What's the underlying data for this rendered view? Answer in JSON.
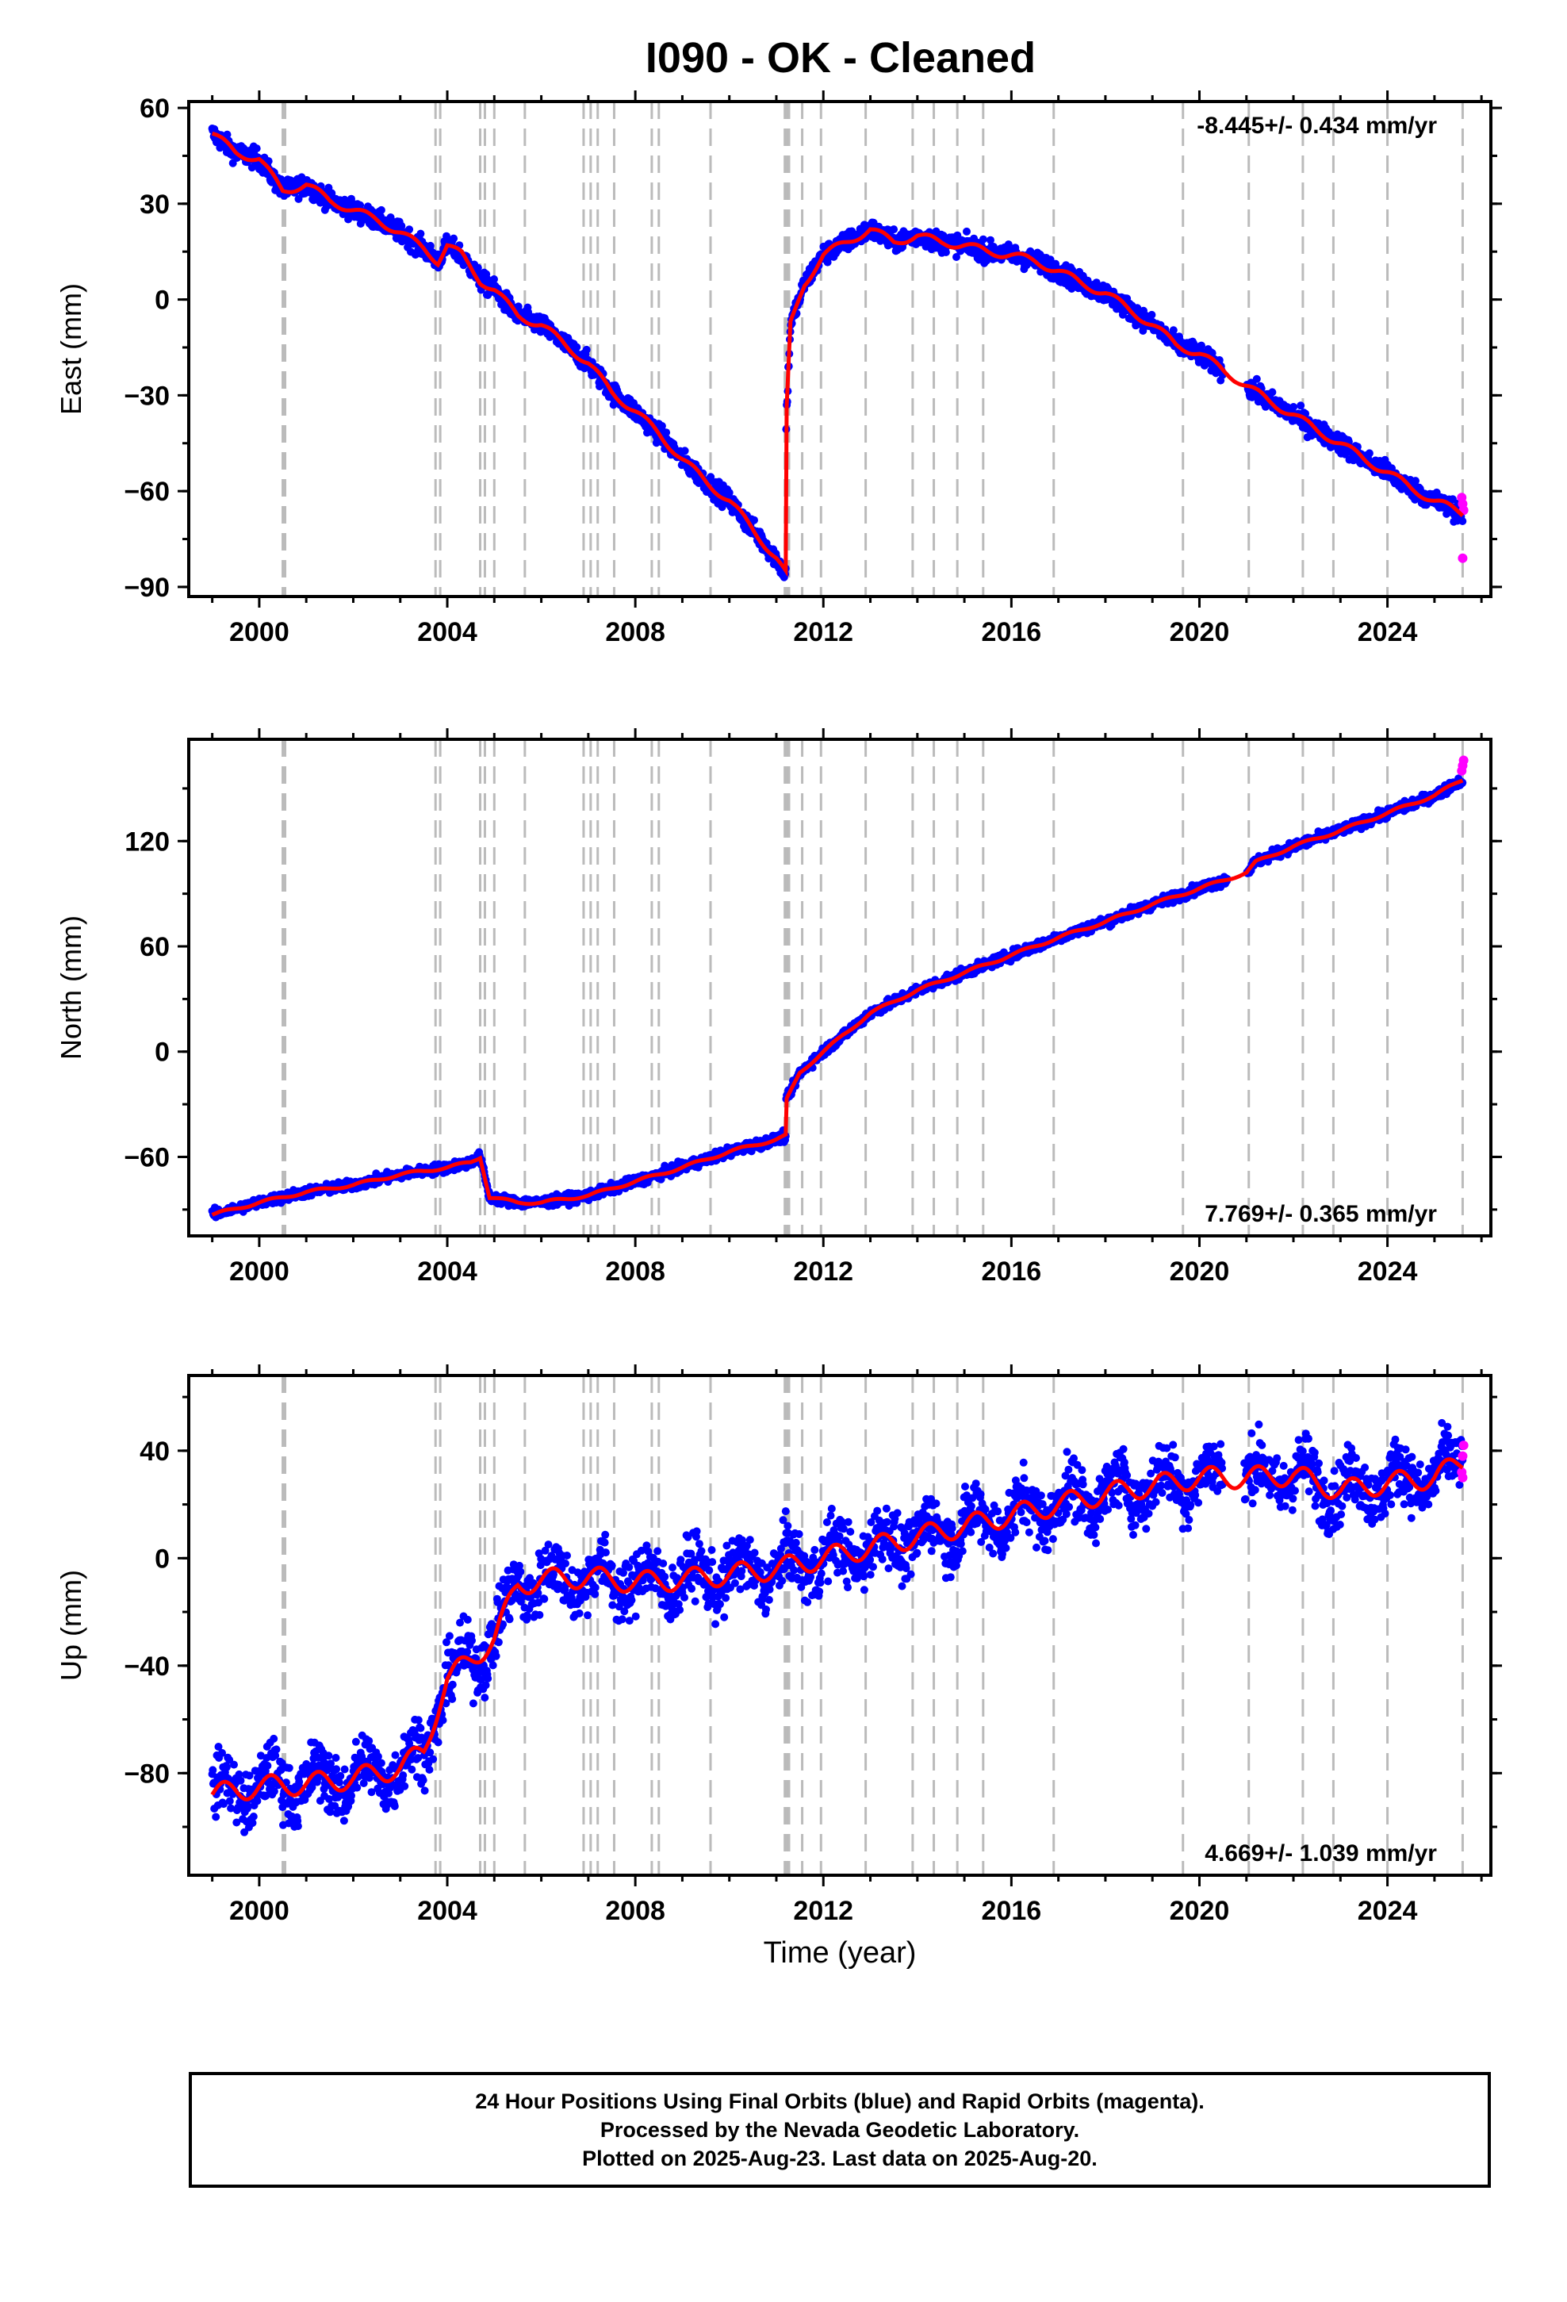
{
  "title": "I090  - OK - Cleaned",
  "colors": {
    "final": "#0000ff",
    "rapid": "#ff00ff",
    "model": "#ff0000",
    "events": "#bbbbbb"
  },
  "x_ticks": [
    "2000",
    "2004",
    "2008",
    "2012",
    "2016",
    "2020",
    "2024"
  ],
  "xlabel": "Time (year)",
  "footer": {
    "line1": "24 Hour Positions Using Final Orbits (blue) and Rapid Orbits (magenta).",
    "line2": "Processed by the Nevada Geodetic Laboratory.",
    "line3": "Plotted on 2025-Aug-23. Last data on 2025-Aug-20."
  },
  "chart_data": [
    {
      "type": "scatter",
      "component": "east",
      "ylabel": "East (mm)",
      "xlim": [
        1998.5,
        2026.2
      ],
      "ylim": [
        -93,
        62
      ],
      "y_ticks": [
        60,
        30,
        0,
        -30,
        -60,
        -90
      ],
      "rate_label": "-8.445+/- 0.434 mm/yr",
      "rate_position": "top-right",
      "noise": 2.2,
      "trend": [
        [
          1999.0,
          52
        ],
        [
          1999.5,
          46
        ],
        [
          2000.0,
          44
        ],
        [
          2000.5,
          34
        ],
        [
          2001.0,
          36
        ],
        [
          2001.5,
          31
        ],
        [
          2002.0,
          28
        ],
        [
          2002.5,
          25
        ],
        [
          2003.0,
          21
        ],
        [
          2003.5,
          16
        ],
        [
          2003.8,
          12
        ],
        [
          2004.0,
          17
        ],
        [
          2004.3,
          14
        ],
        [
          2004.7,
          6
        ],
        [
          2005.0,
          3
        ],
        [
          2005.5,
          -5
        ],
        [
          2006.0,
          -8
        ],
        [
          2006.5,
          -14
        ],
        [
          2007.0,
          -20
        ],
        [
          2007.5,
          -29
        ],
        [
          2008.0,
          -35
        ],
        [
          2008.5,
          -42
        ],
        [
          2009.0,
          -50
        ],
        [
          2009.5,
          -57
        ],
        [
          2010.0,
          -63
        ],
        [
          2010.5,
          -72
        ],
        [
          2011.0,
          -81
        ],
        [
          2011.2,
          -86
        ],
        [
          2011.21,
          -38
        ],
        [
          2011.3,
          -8
        ],
        [
          2011.6,
          5
        ],
        [
          2012.0,
          14
        ],
        [
          2012.5,
          18
        ],
        [
          2013.0,
          22
        ],
        [
          2013.5,
          18
        ],
        [
          2014.0,
          20
        ],
        [
          2014.5,
          18
        ],
        [
          2015.0,
          17
        ],
        [
          2015.5,
          15
        ],
        [
          2016.0,
          14
        ],
        [
          2016.5,
          12
        ],
        [
          2017.0,
          9
        ],
        [
          2017.5,
          5
        ],
        [
          2018.0,
          2
        ],
        [
          2018.5,
          -3
        ],
        [
          2019.0,
          -8
        ],
        [
          2019.5,
          -14
        ],
        [
          2020.0,
          -17
        ],
        [
          2020.5,
          -22
        ],
        [
          2021.0,
          -27
        ],
        [
          2021.5,
          -32
        ],
        [
          2022.0,
          -36
        ],
        [
          2022.5,
          -41
        ],
        [
          2023.0,
          -45
        ],
        [
          2023.5,
          -50
        ],
        [
          2024.0,
          -54
        ],
        [
          2024.5,
          -59
        ],
        [
          2025.0,
          -63
        ],
        [
          2025.6,
          -67
        ]
      ],
      "rapid": [
        [
          2025.58,
          -62
        ],
        [
          2025.6,
          -64
        ],
        [
          2025.62,
          -66
        ],
        [
          2025.6,
          -81
        ]
      ]
    },
    {
      "type": "scatter",
      "component": "north",
      "ylabel": "North (mm)",
      "xlim": [
        1998.5,
        2026.2
      ],
      "ylim": [
        -105,
        178
      ],
      "y_ticks": [
        120,
        60,
        0,
        -60
      ],
      "rate_label": "7.769+/- 0.365 mm/yr",
      "rate_position": "bottom-right",
      "noise": 2.0,
      "trend": [
        [
          1999.0,
          -93
        ],
        [
          2000.0,
          -86
        ],
        [
          2001.0,
          -80
        ],
        [
          2002.0,
          -76
        ],
        [
          2003.0,
          -70
        ],
        [
          2004.0,
          -66
        ],
        [
          2004.5,
          -63
        ],
        [
          2004.7,
          -60
        ],
        [
          2004.9,
          -83
        ],
        [
          2005.5,
          -86
        ],
        [
          2006.0,
          -86
        ],
        [
          2007.0,
          -82
        ],
        [
          2008.0,
          -74
        ],
        [
          2009.0,
          -66
        ],
        [
          2010.0,
          -57
        ],
        [
          2011.0,
          -50
        ],
        [
          2011.2,
          -48
        ],
        [
          2011.21,
          -28
        ],
        [
          2011.5,
          -12
        ],
        [
          2012.0,
          0
        ],
        [
          2013.0,
          22
        ],
        [
          2014.0,
          35
        ],
        [
          2015.0,
          45
        ],
        [
          2016.0,
          55
        ],
        [
          2017.0,
          65
        ],
        [
          2018.0,
          74
        ],
        [
          2019.0,
          84
        ],
        [
          2020.0,
          93
        ],
        [
          2021.0,
          102
        ],
        [
          2021.2,
          108
        ],
        [
          2022.0,
          117
        ],
        [
          2023.0,
          126
        ],
        [
          2024.0,
          136
        ],
        [
          2025.0,
          146
        ],
        [
          2025.6,
          155
        ]
      ],
      "rapid": [
        [
          2025.58,
          160
        ],
        [
          2025.6,
          163
        ],
        [
          2025.62,
          166
        ]
      ]
    },
    {
      "type": "scatter",
      "component": "up",
      "ylabel": "Up (mm)",
      "xlim": [
        1998.5,
        2026.2
      ],
      "ylim": [
        -118,
        68
      ],
      "y_ticks": [
        40,
        0,
        -40,
        -80
      ],
      "rate_label": "4.669+/- 1.039 mm/yr",
      "rate_position": "bottom-right",
      "noise": 8,
      "trend": [
        [
          1999.0,
          -88
        ],
        [
          2000.0,
          -85
        ],
        [
          2001.0,
          -84
        ],
        [
          2002.0,
          -82
        ],
        [
          2003.0,
          -78
        ],
        [
          2003.5,
          -72
        ],
        [
          2003.8,
          -55
        ],
        [
          2004.0,
          -45
        ],
        [
          2004.5,
          -38
        ],
        [
          2005.0,
          -30
        ],
        [
          2005.5,
          -10
        ],
        [
          2006.0,
          -8
        ],
        [
          2007.0,
          -7
        ],
        [
          2008.0,
          -9
        ],
        [
          2009.0,
          -8
        ],
        [
          2010.0,
          -6
        ],
        [
          2011.0,
          -4
        ],
        [
          2012.0,
          0
        ],
        [
          2013.0,
          4
        ],
        [
          2014.0,
          8
        ],
        [
          2015.0,
          12
        ],
        [
          2016.0,
          16
        ],
        [
          2017.0,
          20
        ],
        [
          2018.0,
          24
        ],
        [
          2019.0,
          27
        ],
        [
          2020.0,
          30
        ],
        [
          2021.0,
          30
        ],
        [
          2022.0,
          31
        ],
        [
          2023.0,
          25
        ],
        [
          2024.0,
          28
        ],
        [
          2025.0,
          30
        ],
        [
          2025.6,
          36
        ]
      ],
      "rapid": [
        [
          2025.58,
          32
        ],
        [
          2025.6,
          38
        ],
        [
          2025.62,
          42
        ],
        [
          2025.6,
          30
        ]
      ]
    }
  ],
  "events": [
    2000.5,
    2000.52,
    2000.55,
    2003.75,
    2003.85,
    2004.7,
    2004.8,
    2005.0,
    2005.65,
    2006.9,
    2007.05,
    2007.2,
    2007.55,
    2008.35,
    2008.5,
    2009.6,
    2011.18,
    2011.22,
    2011.27,
    2011.55,
    2011.95,
    2012.9,
    2013.9,
    2014.35,
    2014.85,
    2015.4,
    2016.9,
    2019.65,
    2021.05,
    2022.2,
    2022.85,
    2024.0,
    2025.6
  ]
}
